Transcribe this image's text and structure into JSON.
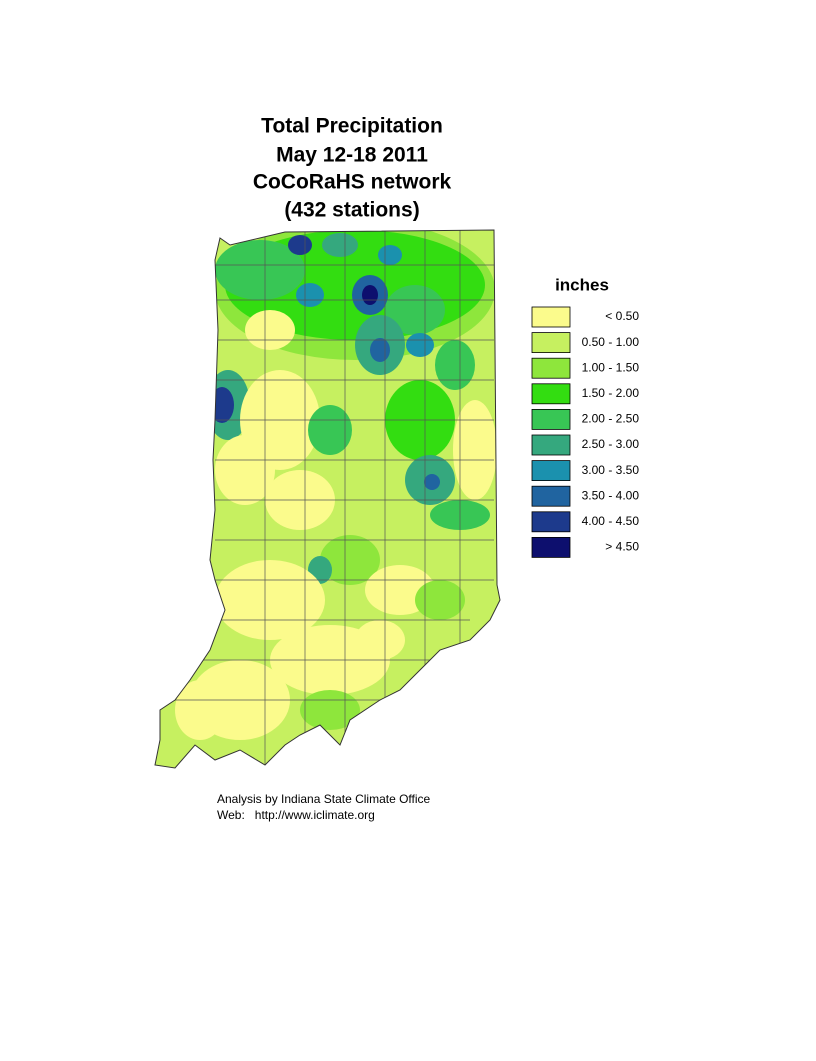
{
  "title": {
    "lines": [
      "Total Precipitation",
      "May 12-18 2011",
      "CoCoRaHS network",
      "(432 stations)"
    ]
  },
  "legend": {
    "title": "inches",
    "items": [
      {
        "label": "< 0.50",
        "color": "#fbfb8c"
      },
      {
        "label": "0.50 - 1.00",
        "color": "#c6f060"
      },
      {
        "label": "1.00 - 1.50",
        "color": "#8ee63c"
      },
      {
        "label": "1.50 - 2.00",
        "color": "#33dd11"
      },
      {
        "label": "2.00 - 2.50",
        "color": "#38c655"
      },
      {
        "label": "2.50 - 3.00",
        "color": "#35a87e"
      },
      {
        "label": "3.00 - 3.50",
        "color": "#1b91ae"
      },
      {
        "label": "3.50 - 4.00",
        "color": "#2064a0"
      },
      {
        "label": "4.00 - 4.50",
        "color": "#1d3a8c"
      },
      {
        "label": "> 4.50",
        "color": "#0d0f6e"
      }
    ]
  },
  "footer": {
    "lines": [
      "Analysis by Indiana State Climate Office",
      "Web:   http://www.iclimate.org"
    ]
  }
}
